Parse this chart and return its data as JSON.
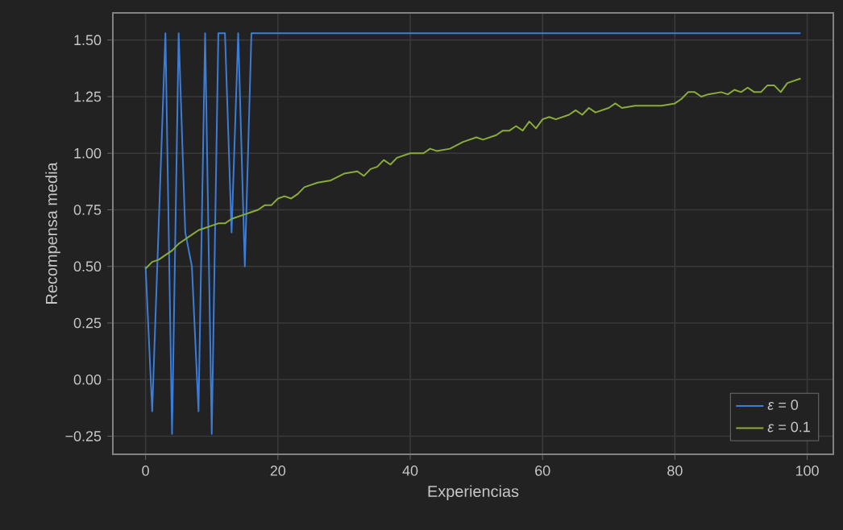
{
  "chart_data": {
    "type": "line",
    "xlabel": "Experiencias",
    "ylabel": "Recompensa media",
    "x": [
      0,
      1,
      2,
      3,
      4,
      5,
      6,
      7,
      8,
      9,
      10,
      11,
      12,
      13,
      14,
      15,
      16,
      17,
      18,
      19,
      20,
      21,
      22,
      23,
      24,
      26,
      28,
      30,
      32,
      33,
      34,
      35,
      36,
      37,
      38,
      40,
      42,
      43,
      44,
      46,
      48,
      50,
      51,
      53,
      54,
      55,
      56,
      57,
      58,
      59,
      60,
      61,
      62,
      64,
      65,
      66,
      67,
      68,
      70,
      71,
      72,
      74,
      76,
      78,
      80,
      81,
      82,
      83,
      84,
      85,
      87,
      88,
      89,
      90,
      91,
      92,
      93,
      94,
      95,
      96,
      97,
      98,
      99
    ],
    "series": [
      {
        "name": "*ε* = 0",
        "color": "#3b7dd8",
        "x": [
          0,
          1,
          3,
          4,
          5,
          6,
          7,
          8,
          9,
          10,
          11,
          12,
          13,
          14,
          15,
          16,
          99
        ],
        "values": [
          0.5,
          -0.14,
          1.53,
          -0.24,
          1.53,
          0.65,
          0.5,
          -0.14,
          1.53,
          -0.24,
          1.53,
          1.53,
          0.65,
          1.53,
          0.5,
          1.53,
          1.53
        ]
      },
      {
        "name": "*ε* = 0.1",
        "color": "#8bab3a",
        "values": [
          0.49,
          0.52,
          0.53,
          0.55,
          0.57,
          0.6,
          0.62,
          0.64,
          0.66,
          0.67,
          0.68,
          0.69,
          0.69,
          0.71,
          0.72,
          0.73,
          0.74,
          0.75,
          0.77,
          0.77,
          0.8,
          0.81,
          0.8,
          0.82,
          0.85,
          0.87,
          0.88,
          0.91,
          0.92,
          0.9,
          0.93,
          0.94,
          0.97,
          0.95,
          0.98,
          1.0,
          1.0,
          1.02,
          1.01,
          1.02,
          1.05,
          1.07,
          1.06,
          1.08,
          1.1,
          1.1,
          1.12,
          1.1,
          1.14,
          1.11,
          1.15,
          1.16,
          1.15,
          1.17,
          1.19,
          1.17,
          1.2,
          1.18,
          1.2,
          1.22,
          1.2,
          1.21,
          1.21,
          1.21,
          1.22,
          1.24,
          1.27,
          1.27,
          1.25,
          1.26,
          1.27,
          1.26,
          1.28,
          1.27,
          1.29,
          1.27,
          1.27,
          1.3,
          1.3,
          1.27,
          1.31,
          1.32,
          1.33
        ]
      }
    ],
    "xlim": [
      -4.95,
      103.95
    ],
    "ylim": [
      -0.33,
      1.62
    ],
    "xticks": [
      0,
      20,
      40,
      60,
      80,
      100
    ],
    "yticks": [
      {
        "value": -0.25,
        "label": "−0.25"
      },
      {
        "value": 0,
        "label": "0.00"
      },
      {
        "value": 0.25,
        "label": "0.25"
      },
      {
        "value": 0.5,
        "label": "0.50"
      },
      {
        "value": 0.75,
        "label": "0.75"
      },
      {
        "value": 1.0,
        "label": "1.00"
      },
      {
        "value": 1.25,
        "label": "1.25"
      },
      {
        "value": 1.5,
        "label": "1.50"
      }
    ],
    "grid": true,
    "legend": "bottom right",
    "marker": "none",
    "line_style": "solid"
  }
}
